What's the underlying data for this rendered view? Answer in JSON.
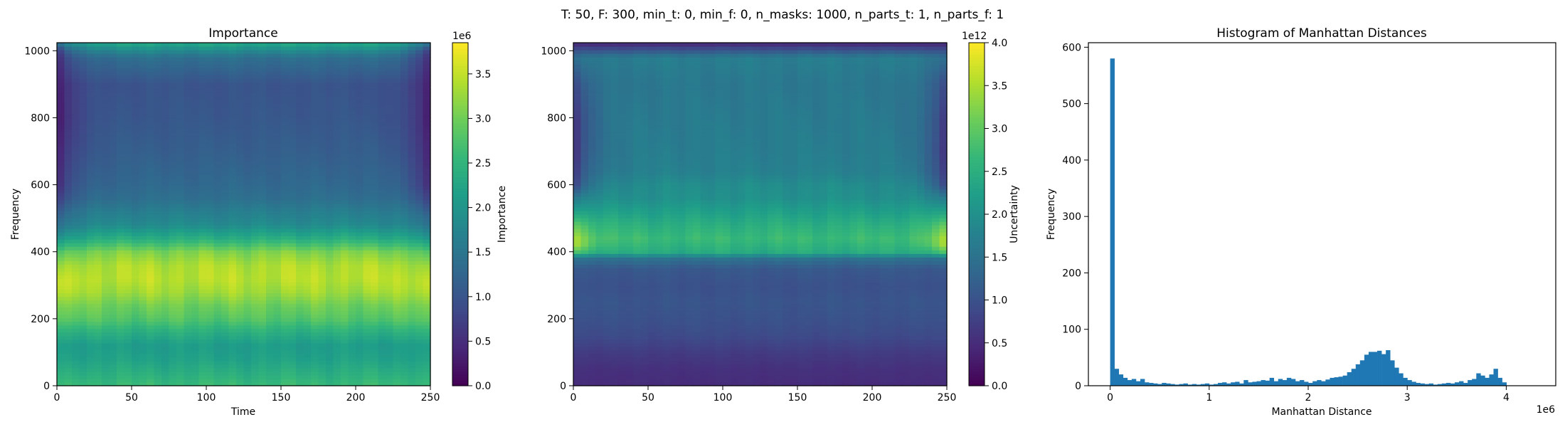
{
  "suptitle": "T: 50, F: 300, min_t: 0, min_f: 0, n_masks: 1000, n_parts_t: 1, n_parts_f: 1",
  "chart_data": [
    {
      "type": "heatmap",
      "title": "Importance",
      "xlabel": "Time",
      "ylabel": "Frequency",
      "xlim": [
        0,
        250
      ],
      "ylim": [
        0,
        1024
      ],
      "xticks": [
        0,
        50,
        100,
        150,
        200,
        250
      ],
      "yticks": [
        0,
        200,
        400,
        600,
        800,
        1000
      ],
      "colormap": "viridis",
      "colorbar": {
        "label": "Importance",
        "range": [
          0,
          3.85
        ],
        "ticks": [
          "0.0",
          "0.5",
          "1.0",
          "1.5",
          "2.0",
          "2.5",
          "3.0",
          "3.5"
        ],
        "tick_values": [
          0,
          0.5,
          1.0,
          1.5,
          2.0,
          2.5,
          3.0,
          3.5
        ],
        "offset": "1e6"
      },
      "row_profile": {
        "freq": [
          0,
          40,
          80,
          120,
          160,
          200,
          240,
          280,
          320,
          360,
          400,
          440,
          480,
          520,
          560,
          600,
          700,
          800,
          900,
          980,
          1024
        ],
        "value": [
          2.6,
          2.4,
          2.2,
          2.1,
          2.4,
          2.8,
          3.0,
          3.3,
          3.45,
          3.4,
          3.1,
          2.4,
          1.85,
          1.65,
          1.4,
          1.3,
          1.15,
          1.05,
          1.0,
          1.4,
          2.3
        ]
      },
      "edge_profile": {
        "freq": [
          0,
          300,
          500,
          600,
          800,
          1000,
          1024
        ],
        "factor": [
          1.0,
          1.05,
          0.7,
          0.3,
          0.15,
          0.3,
          0.6
        ]
      }
    },
    {
      "type": "heatmap",
      "title": "",
      "xlabel": "",
      "ylabel": "",
      "xlim": [
        0,
        250
      ],
      "ylim": [
        0,
        1024
      ],
      "xticks": [
        0,
        50,
        100,
        150,
        200,
        250
      ],
      "yticks": [
        0,
        200,
        400,
        600,
        800,
        1000
      ],
      "colormap": "viridis",
      "colorbar": {
        "label": "Uncertainty",
        "range": [
          0,
          4.0
        ],
        "ticks": [
          "0.0",
          "0.5",
          "1.0",
          "1.5",
          "2.0",
          "2.5",
          "3.0",
          "3.5",
          "4.0"
        ],
        "tick_values": [
          0,
          0.5,
          1.0,
          1.5,
          2.0,
          2.5,
          3.0,
          3.5,
          4.0
        ],
        "offset": "1e12"
      },
      "row_profile": {
        "freq": [
          0,
          50,
          100,
          150,
          200,
          250,
          300,
          350,
          380,
          400,
          440,
          480,
          520,
          560,
          600,
          640,
          700,
          800,
          900,
          980,
          1024
        ],
        "value": [
          0.5,
          0.55,
          0.7,
          0.9,
          1.0,
          1.05,
          1.0,
          1.1,
          1.5,
          2.45,
          2.7,
          2.5,
          2.25,
          2.0,
          1.95,
          1.75,
          1.7,
          1.65,
          1.6,
          1.7,
          0.4
        ]
      },
      "edge_profile": {
        "freq": [
          0,
          380,
          420,
          480,
          560,
          600,
          700,
          800,
          900,
          1000,
          1024
        ],
        "factor": [
          1.0,
          1.0,
          1.4,
          1.25,
          0.8,
          0.35,
          0.25,
          0.3,
          0.5,
          0.9,
          1.0
        ]
      }
    },
    {
      "type": "bar",
      "title": "Histogram of Manhattan Distances",
      "xlabel": "Manhattan Distance",
      "ylabel": "Frequency",
      "xlim": [
        -0.22,
        4.5
      ],
      "ylim": [
        0,
        608
      ],
      "xticks": [
        0,
        1,
        2,
        3,
        4
      ],
      "xtick_labels": [
        "0",
        "1",
        "2",
        "3",
        "4"
      ],
      "x_offset": "1e6",
      "yticks": [
        0,
        100,
        200,
        300,
        400,
        500,
        600
      ],
      "bin_start": 0,
      "bin_width": 0.0435,
      "bar_color": "#1f77b4",
      "counts": [
        580,
        30,
        20,
        14,
        10,
        12,
        8,
        12,
        6,
        5,
        4,
        3,
        5,
        4,
        3,
        2,
        3,
        4,
        2,
        3,
        2,
        3,
        4,
        2,
        3,
        5,
        6,
        4,
        6,
        7,
        4,
        10,
        6,
        7,
        8,
        10,
        9,
        14,
        8,
        12,
        10,
        14,
        12,
        8,
        10,
        7,
        5,
        8,
        10,
        8,
        11,
        14,
        15,
        16,
        18,
        24,
        30,
        38,
        45,
        55,
        60,
        60,
        62,
        56,
        63,
        45,
        32,
        22,
        14,
        10,
        7,
        5,
        4,
        3,
        4,
        2,
        3,
        4,
        5,
        4,
        6,
        8,
        5,
        10,
        12,
        22,
        18,
        14,
        20,
        30,
        14,
        6
      ]
    }
  ]
}
